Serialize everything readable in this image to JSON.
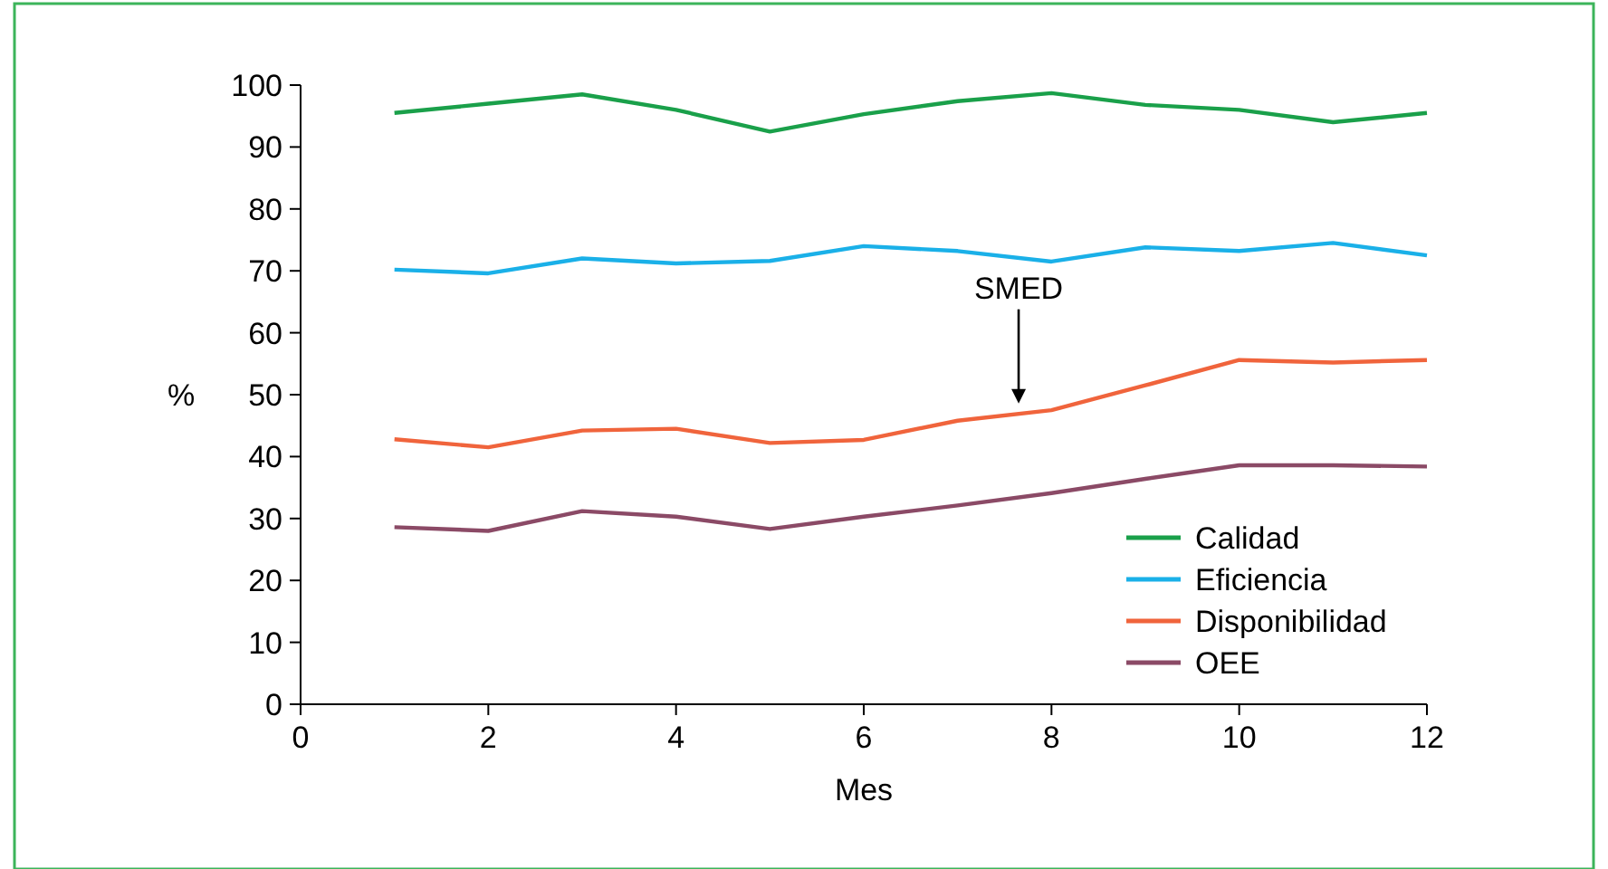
{
  "chart_data": {
    "type": "line",
    "xlabel": "Mes",
    "ylabel": "%",
    "x": [
      1,
      2,
      3,
      4,
      5,
      6,
      7,
      8,
      9,
      10,
      11,
      12
    ],
    "xlim": [
      0,
      12
    ],
    "xticks": [
      0,
      2,
      4,
      6,
      8,
      10,
      12
    ],
    "ylim": [
      0,
      100
    ],
    "yticks": [
      0,
      10,
      20,
      30,
      40,
      50,
      60,
      70,
      80,
      90,
      100
    ],
    "series": [
      {
        "name": "Calidad",
        "color": "#1aa04a",
        "values": [
          95.5,
          97,
          98.5,
          96,
          92.5,
          95.3,
          97.4,
          98.7,
          96.8,
          96,
          94,
          95.5
        ]
      },
      {
        "name": "Eficiencia",
        "color": "#1ab0e8",
        "values": [
          70.2,
          69.6,
          72,
          71.2,
          71.6,
          74,
          73.2,
          71.5,
          73.8,
          73.2,
          74.5,
          72.5
        ]
      },
      {
        "name": "Disponibilidad",
        "color": "#f0643c",
        "values": [
          42.8,
          41.5,
          44.2,
          44.5,
          42.2,
          42.7,
          45.8,
          47.5,
          51.5,
          55.6,
          55.2,
          55.6
        ]
      },
      {
        "name": "OEE",
        "color": "#8b4a66",
        "values": [
          28.6,
          28,
          31.2,
          30.3,
          28.3,
          30.3,
          32.1,
          34.1,
          36.4,
          38.6,
          38.6,
          38.4
        ]
      }
    ],
    "annotations": [
      {
        "text": "SMED",
        "x": 7.65,
        "y": 48
      }
    ],
    "legend": "bottom right",
    "grid": false,
    "line_style": "solid",
    "marker": "none"
  }
}
